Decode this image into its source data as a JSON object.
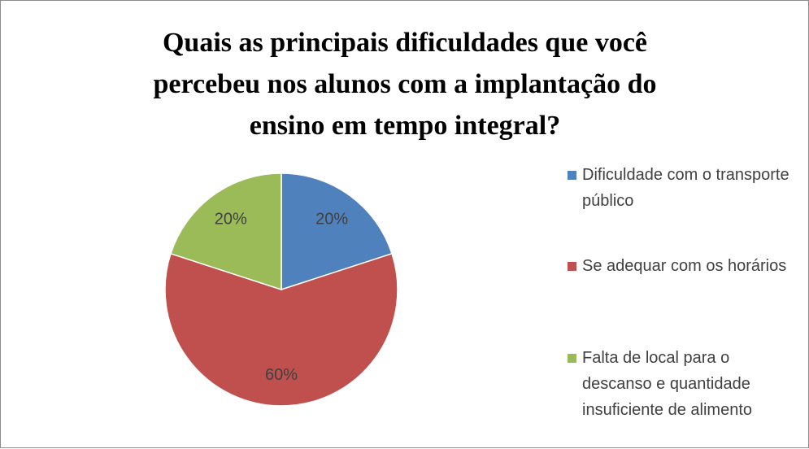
{
  "chart_data": {
    "type": "pie",
    "title": "Quais as principais dificuldades que você percebeu nos alunos com a implantação do ensino em tempo integral?",
    "categories": [
      "Dificuldade com o transporte público",
      "Se adequar com os horários",
      "Falta de local para o descanso e quantidade insuficiente de alimento"
    ],
    "values": [
      20,
      60,
      20
    ],
    "value_labels": [
      "20%",
      "60%",
      "20%"
    ],
    "colors": [
      "#4f81bd",
      "#c0504d",
      "#9bbb59"
    ],
    "legend": "right"
  }
}
